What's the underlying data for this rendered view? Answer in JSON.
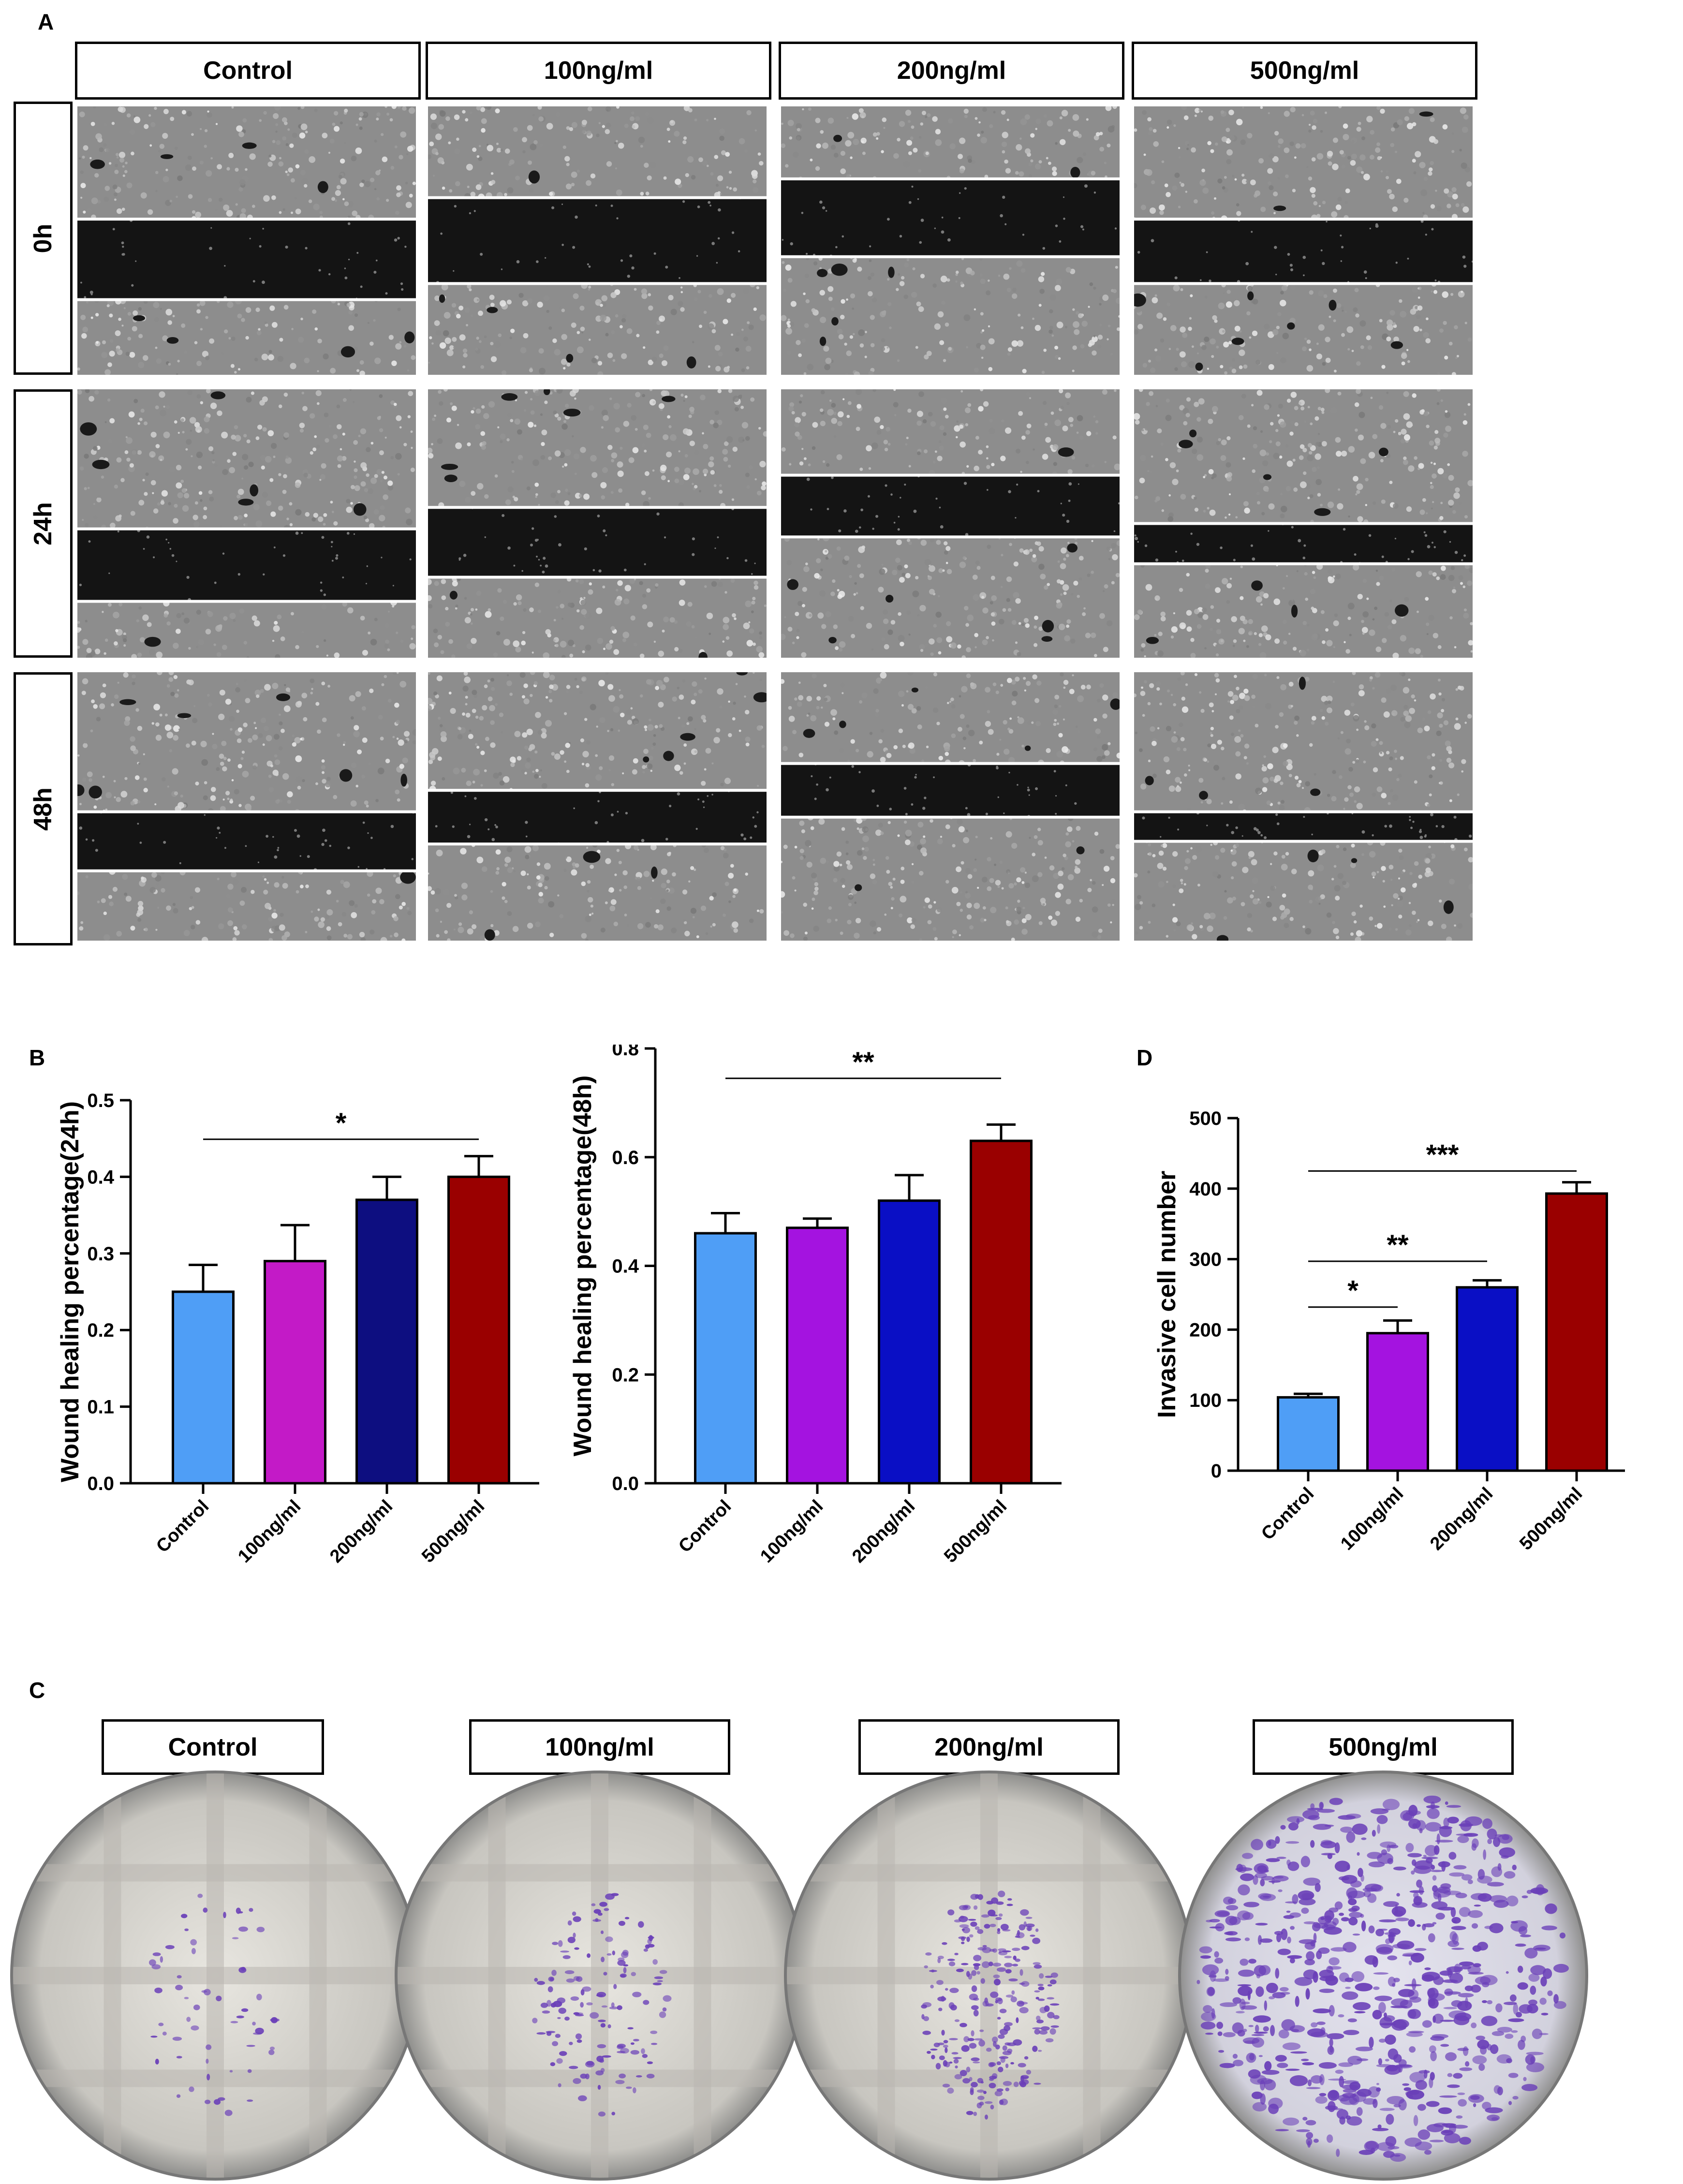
{
  "panels": {
    "a": {
      "letter": "A"
    },
    "b": {
      "letter": "B"
    },
    "c": {
      "letter": "C"
    },
    "d": {
      "letter": "D"
    }
  },
  "groups": [
    "Control",
    "100ng/ml",
    "200ng/ml",
    "500ng/ml"
  ],
  "timepoints": [
    "0h",
    "24h",
    "48h"
  ],
  "colors": {
    "control": "#4f9ef6",
    "magenta": "#c31ac7",
    "dark_navy": "#0d0e80",
    "dark_red": "#9a0000",
    "purple": "#a413e0",
    "blue": "#0a0fc5",
    "stain": "#6a3fb8"
  },
  "chart_data": [
    {
      "id": "b-24h",
      "type": "bar",
      "categories": [
        "Control",
        "100ng/ml",
        "200ng/ml",
        "500ng/ml"
      ],
      "values": [
        0.25,
        0.29,
        0.37,
        0.4
      ],
      "errors": [
        0.035,
        0.047,
        0.03,
        0.027
      ],
      "bar_colors": [
        "#4f9ef6",
        "#c31ac7",
        "#0d0e80",
        "#9a0000"
      ],
      "ylabel": "Wound healing percentage(24h)",
      "ylim": [
        0,
        0.5
      ],
      "yticks": [
        "0.0",
        "0.1",
        "0.2",
        "0.3",
        "0.4",
        "0.5"
      ],
      "significance": [
        {
          "from": 0,
          "to": 3,
          "label": "*",
          "y": 0.449
        }
      ]
    },
    {
      "id": "b-48h",
      "type": "bar",
      "categories": [
        "Control",
        "100ng/ml",
        "200ng/ml",
        "500ng/ml"
      ],
      "values": [
        0.46,
        0.47,
        0.52,
        0.63
      ],
      "errors": [
        0.037,
        0.017,
        0.047,
        0.03
      ],
      "bar_colors": [
        "#4f9ef6",
        "#a413e0",
        "#0a0fc5",
        "#9a0000"
      ],
      "ylabel": "Wound healing percentage(48h)",
      "ylim": [
        0,
        0.8
      ],
      "yticks": [
        "0.0",
        "0.2",
        "0.4",
        "0.6",
        "0.8"
      ],
      "significance": [
        {
          "from": 0,
          "to": 3,
          "label": "**",
          "y": 0.745
        }
      ]
    },
    {
      "id": "d",
      "type": "bar",
      "categories": [
        "Control",
        "100ng/ml",
        "200ng/ml",
        "500ng/ml"
      ],
      "values": [
        104,
        195,
        260,
        393
      ],
      "errors": [
        5,
        18,
        10,
        16
      ],
      "bar_colors": [
        "#4f9ef6",
        "#a413e0",
        "#0a0fc5",
        "#9a0000"
      ],
      "ylabel": "Invasive cell number",
      "ylim": [
        0,
        500
      ],
      "yticks": [
        "0",
        "100",
        "200",
        "300",
        "400",
        "500"
      ],
      "significance": [
        {
          "from": 0,
          "to": 1,
          "label": "*",
          "y": 232
        },
        {
          "from": 0,
          "to": 2,
          "label": "**",
          "y": 297
        },
        {
          "from": 0,
          "to": 3,
          "label": "***",
          "y": 425
        }
      ]
    }
  ]
}
